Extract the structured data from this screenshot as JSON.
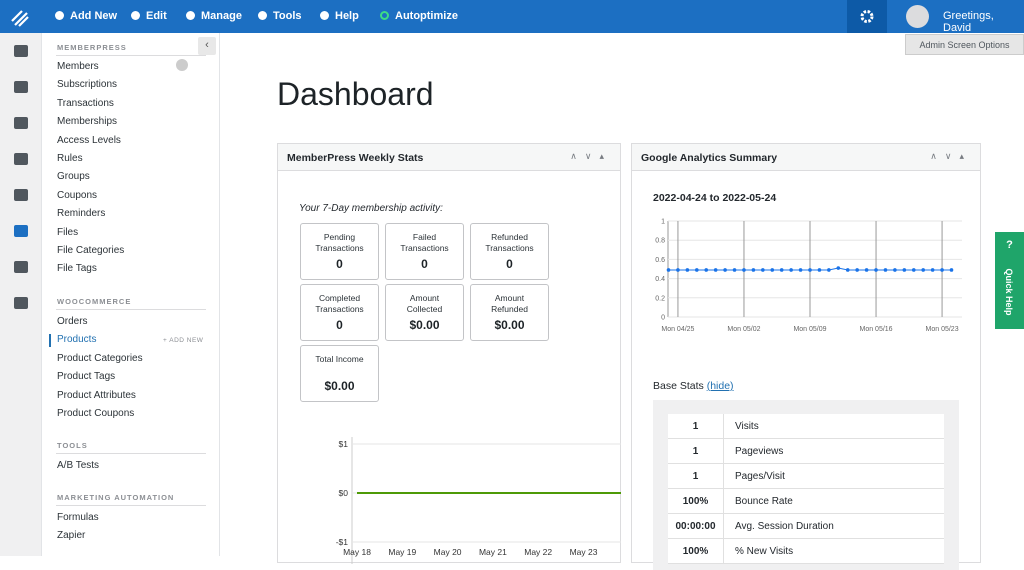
{
  "topbar": {
    "menu": [
      "Add New",
      "Edit",
      "Manage",
      "Tools",
      "Help",
      "Autoptimize"
    ],
    "greeting": "Greetings, David",
    "screen_options": "Admin Screen Options"
  },
  "sidebar": {
    "sections": [
      {
        "title": "MEMBERPRESS",
        "items": [
          "Members",
          "Subscriptions",
          "Transactions",
          "Memberships",
          "Access Levels",
          "Rules",
          "Groups",
          "Coupons",
          "Reminders",
          "Files",
          "File Categories",
          "File Tags"
        ]
      },
      {
        "title": "WOOCOMMERCE",
        "items": [
          "Orders",
          "Products",
          "Product Categories",
          "Product Tags",
          "Product Attributes",
          "Product Coupons"
        ],
        "add_new": "+ ADD NEW"
      },
      {
        "title": "TOOLS",
        "items": [
          "A/B Tests"
        ]
      },
      {
        "title": "MARKETING AUTOMATION",
        "items": [
          "Formulas",
          "Zapier"
        ]
      }
    ]
  },
  "page_title": "Dashboard",
  "weekly_stats": {
    "title": "MemberPress Weekly Stats",
    "subtitle": "Your 7-Day membership activity:",
    "boxes": [
      {
        "label": "Pending Transactions",
        "value": "0"
      },
      {
        "label": "Failed Transactions",
        "value": "0"
      },
      {
        "label": "Refunded Transactions",
        "value": "0"
      },
      {
        "label": "Completed Transactions",
        "value": "0"
      },
      {
        "label": "Amount Collected",
        "value": "$0.00"
      },
      {
        "label": "Amount Refunded",
        "value": "$0.00"
      },
      {
        "label": "Total Income",
        "value": "$0.00"
      }
    ],
    "chart": {
      "categories": [
        "May 18",
        "May 19",
        "May 20",
        "May 21",
        "May 22",
        "May 23"
      ],
      "values": [
        0,
        0,
        0,
        0,
        0,
        0
      ],
      "color": "#4e9a06",
      "ylim": [
        -1,
        1
      ],
      "yticks": [
        {
          "value": 1,
          "label": "$1"
        },
        {
          "value": 0,
          "label": "$0"
        },
        {
          "value": -1,
          "label": "-$1"
        }
      ]
    }
  },
  "analytics": {
    "title": "Google Analytics Summary",
    "date_range": "2022-04-24 to 2022-05-24",
    "chart": {
      "values": [
        0.49,
        0.49,
        0.49,
        0.49,
        0.49,
        0.49,
        0.49,
        0.49,
        0.49,
        0.49,
        0.49,
        0.49,
        0.49,
        0.49,
        0.49,
        0.49,
        0.49,
        0.49,
        0.51,
        0.49,
        0.49,
        0.49,
        0.49,
        0.49,
        0.49,
        0.49,
        0.49,
        0.49,
        0.49,
        0.49,
        0.49
      ],
      "color": "#1a73e8",
      "xlim": [
        0,
        30
      ],
      "ylim": [
        0,
        1
      ],
      "yticks": [
        0,
        0.2,
        0.4,
        0.6,
        0.8,
        1
      ],
      "xticks": [
        {
          "value": 1,
          "label": "Mon 04/25"
        },
        {
          "value": 8,
          "label": "Mon 05/02"
        },
        {
          "value": 15,
          "label": "Mon 05/09"
        },
        {
          "value": 22,
          "label": "Mon 05/16"
        },
        {
          "value": 29,
          "label": "Mon 05/23"
        }
      ]
    },
    "base_stats": "Base Stats",
    "hide": "(hide)",
    "rows": [
      [
        "1",
        "Visits"
      ],
      [
        "1",
        "Pageviews"
      ],
      [
        "1",
        "Pages/Visit"
      ],
      [
        "100%",
        "Bounce Rate"
      ],
      [
        "00:00:00",
        "Avg. Session Duration"
      ],
      [
        "100%",
        "% New Visits"
      ]
    ]
  },
  "quick_help": {
    "icon": "?",
    "label": "Quick Help"
  }
}
